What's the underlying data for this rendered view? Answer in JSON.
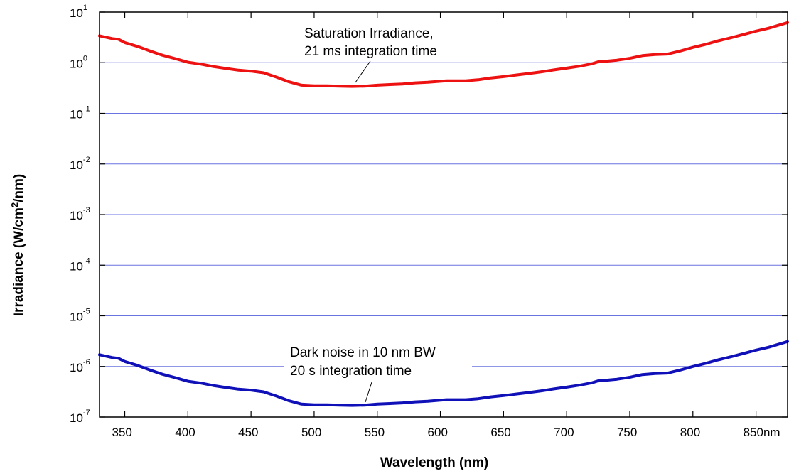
{
  "chart_data": {
    "type": "line",
    "title": "",
    "xlabel": "Wavelength (nm)",
    "ylabel": "Irradiance (W/cm2/nm)",
    "ylabel_parts": {
      "pre": "Irradiance (W/cm",
      "sup": "2",
      "post": "/nm)"
    },
    "xlim": [
      330,
      875
    ],
    "ylim": [
      1e-07,
      10
    ],
    "yscale": "log",
    "grid": "horizontal at decades",
    "x_ticks": [
      350,
      400,
      450,
      500,
      550,
      600,
      650,
      700,
      750,
      800,
      850
    ],
    "x_tick_labels": [
      "350",
      "400",
      "450",
      "500",
      "550",
      "600",
      "650",
      "700",
      "750",
      "800",
      "850nm"
    ],
    "y_ticks": [
      {
        "value": 1e-07,
        "base": "10",
        "exp": "-7"
      },
      {
        "value": 1e-06,
        "base": "10",
        "exp": "-6"
      },
      {
        "value": 1e-05,
        "base": "10",
        "exp": "-5"
      },
      {
        "value": 0.0001,
        "base": "10",
        "exp": "-4"
      },
      {
        "value": 0.001,
        "base": "10",
        "exp": "-3"
      },
      {
        "value": 0.01,
        "base": "10",
        "exp": "-2"
      },
      {
        "value": 0.1,
        "base": "10",
        "exp": "-1"
      },
      {
        "value": 1,
        "base": "10",
        "exp": "0"
      },
      {
        "value": 10,
        "base": "10",
        "exp": "1"
      }
    ],
    "series": [
      {
        "name": "Saturation Irradiance, 21 ms integration time",
        "color": "#ee1111",
        "x": [
          330,
          340,
          345,
          350,
          360,
          370,
          380,
          390,
          400,
          410,
          420,
          430,
          440,
          450,
          460,
          470,
          480,
          490,
          500,
          510,
          520,
          530,
          540,
          550,
          560,
          570,
          580,
          590,
          600,
          605,
          610,
          620,
          630,
          640,
          650,
          660,
          670,
          680,
          690,
          700,
          710,
          720,
          725,
          730,
          740,
          750,
          760,
          770,
          780,
          790,
          800,
          810,
          820,
          830,
          840,
          850,
          860,
          875
        ],
        "values": [
          3.4,
          3.0,
          2.9,
          2.5,
          2.1,
          1.7,
          1.4,
          1.2,
          1.02,
          0.94,
          0.84,
          0.77,
          0.71,
          0.68,
          0.63,
          0.52,
          0.42,
          0.36,
          0.35,
          0.35,
          0.345,
          0.34,
          0.345,
          0.36,
          0.37,
          0.38,
          0.4,
          0.41,
          0.43,
          0.44,
          0.44,
          0.44,
          0.46,
          0.5,
          0.53,
          0.57,
          0.61,
          0.66,
          0.72,
          0.78,
          0.85,
          0.95,
          1.04,
          1.06,
          1.12,
          1.22,
          1.38,
          1.45,
          1.48,
          1.7,
          2.0,
          2.3,
          2.7,
          3.1,
          3.6,
          4.2,
          4.8,
          6.2
        ]
      },
      {
        "name": "Dark noise in 10 nm BW 20 s integration time",
        "color": "#1010b8",
        "x": [
          330,
          340,
          345,
          350,
          360,
          370,
          380,
          390,
          400,
          410,
          420,
          430,
          440,
          450,
          460,
          470,
          480,
          490,
          500,
          510,
          520,
          530,
          540,
          550,
          560,
          570,
          580,
          590,
          600,
          605,
          610,
          620,
          630,
          640,
          650,
          660,
          670,
          680,
          690,
          700,
          710,
          720,
          725,
          730,
          740,
          750,
          760,
          770,
          780,
          790,
          800,
          810,
          820,
          830,
          840,
          850,
          860,
          875
        ],
        "values": [
          1.7e-06,
          1.5e-06,
          1.45e-06,
          1.25e-06,
          1.05e-06,
          8.5e-07,
          7e-07,
          6e-07,
          5.1e-07,
          4.7e-07,
          4.2e-07,
          3.85e-07,
          3.55e-07,
          3.4e-07,
          3.15e-07,
          2.6e-07,
          2.1e-07,
          1.8e-07,
          1.75e-07,
          1.75e-07,
          1.72e-07,
          1.7e-07,
          1.72e-07,
          1.8e-07,
          1.85e-07,
          1.9e-07,
          2e-07,
          2.05e-07,
          2.15e-07,
          2.2e-07,
          2.2e-07,
          2.2e-07,
          2.3e-07,
          2.5e-07,
          2.65e-07,
          2.85e-07,
          3.05e-07,
          3.3e-07,
          3.6e-07,
          3.9e-07,
          4.25e-07,
          4.75e-07,
          5.2e-07,
          5.3e-07,
          5.6e-07,
          6.1e-07,
          6.9e-07,
          7.25e-07,
          7.4e-07,
          8.5e-07,
          1e-06,
          1.15e-06,
          1.35e-06,
          1.55e-06,
          1.8e-06,
          2.1e-06,
          2.4e-06,
          3.1e-06
        ]
      }
    ],
    "annotations": [
      {
        "lines": [
          "Saturation Irradiance,",
          "21 ms integration time"
        ],
        "series": 0
      },
      {
        "lines": [
          "Dark noise in 10 nm BW",
          "20 s integration time"
        ],
        "series": 1
      }
    ],
    "gridline_color": "#6a74e0"
  }
}
